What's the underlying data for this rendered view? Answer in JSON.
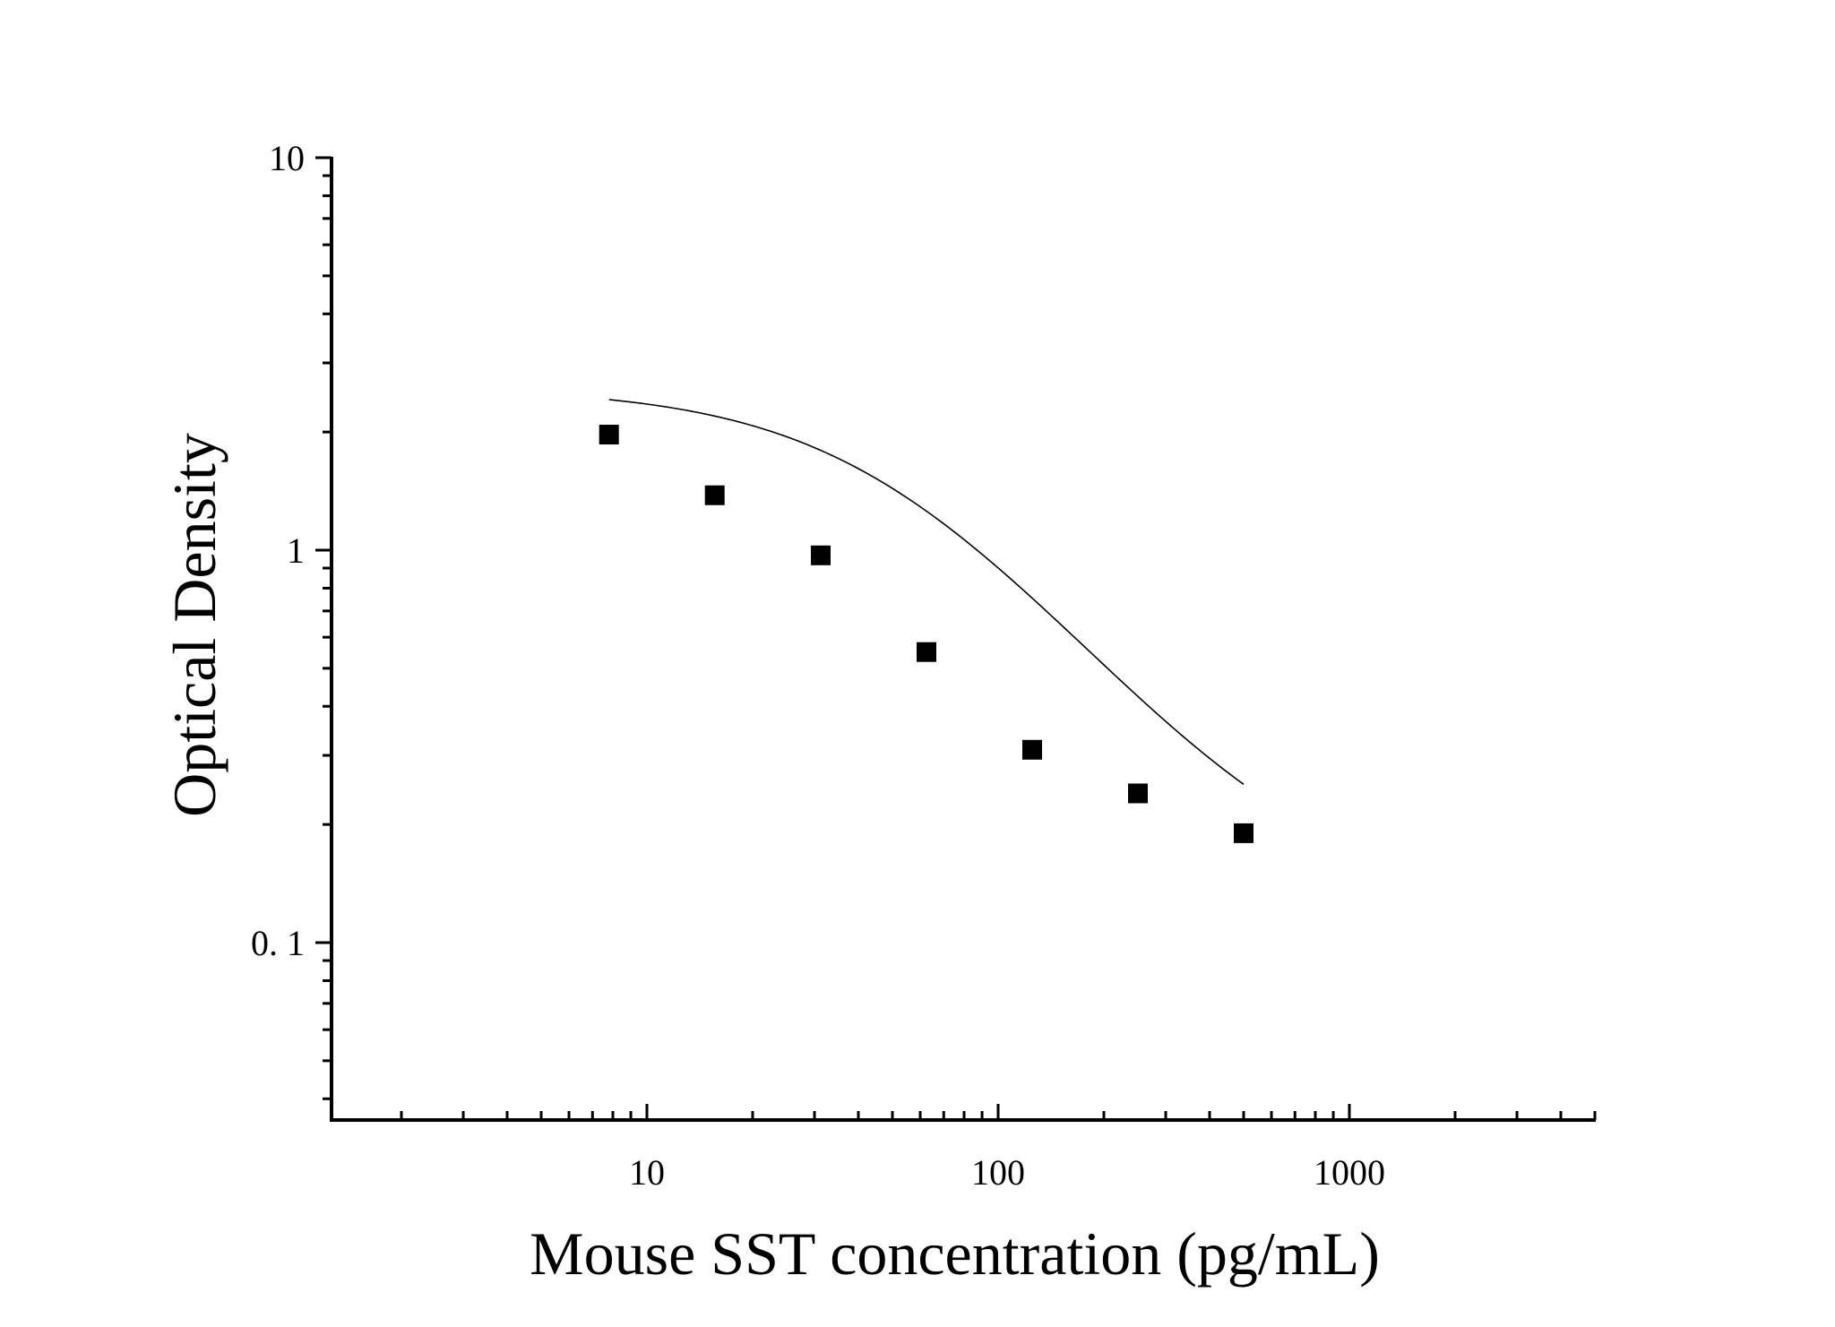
{
  "chart_data": {
    "type": "scatter",
    "title": "",
    "xlabel": "Mouse SST concentration (pg/mL)",
    "ylabel": "Optical Density",
    "x_scale": "log",
    "y_scale": "log",
    "xlim": [
      1.25,
      5000
    ],
    "ylim": [
      0.035,
      10
    ],
    "x_ticks": [
      {
        "value": 10,
        "label": "10"
      },
      {
        "value": 100,
        "label": "100"
      },
      {
        "value": 1000,
        "label": "1000"
      }
    ],
    "y_ticks": [
      {
        "value": 0.1,
        "label": "0. 1"
      },
      {
        "value": 1,
        "label": "1"
      },
      {
        "value": 10,
        "label": "10"
      }
    ],
    "grid": false,
    "legend": "none",
    "series": [
      {
        "marker": "square",
        "points": [
          {
            "x": 7.8,
            "y": 1.97
          },
          {
            "x": 15.6,
            "y": 1.38
          },
          {
            "x": 31.25,
            "y": 0.97
          },
          {
            "x": 62.5,
            "y": 0.55
          },
          {
            "x": 125,
            "y": 0.31
          },
          {
            "x": 250,
            "y": 0.24
          },
          {
            "x": 500,
            "y": 0.19
          }
        ]
      }
    ],
    "fit_curve": {
      "type": "4PL",
      "A": 2.6,
      "B": 1.3,
      "C": 55,
      "D": 0.12,
      "x_range": [
        7.8,
        500
      ]
    }
  }
}
